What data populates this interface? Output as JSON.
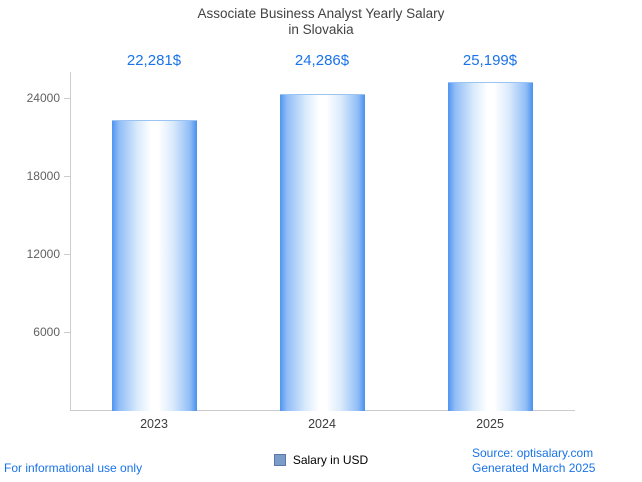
{
  "title": {
    "line1": "Associate Business Analyst Yearly Salary",
    "line2": "in Slovakia"
  },
  "chart_data": {
    "type": "bar",
    "title": "Associate Business Analyst Yearly Salary in Slovakia",
    "categories": [
      "2023",
      "2024",
      "2025"
    ],
    "values": [
      22281,
      24286,
      25199
    ],
    "value_labels": [
      "22,281$",
      "24,286$",
      "25,199$"
    ],
    "series_name": "Salary in USD",
    "xlabel": "",
    "ylabel": "",
    "ylim": [
      0,
      26000
    ],
    "yticks": [
      6000,
      12000,
      18000,
      24000
    ],
    "grid": false,
    "legend_position": "bottom"
  },
  "legend": {
    "label": "Salary in USD"
  },
  "footer": {
    "disclaimer": "For informational use only",
    "source": "Source: optisalary.com",
    "generated": "Generated March 2025"
  },
  "colors": {
    "accent_blue": "#1a73e8",
    "bar_edge_blue": "#4e94f0",
    "bar_center_white": "#ffffff",
    "axis_gray": "#cccccc",
    "title_gray": "#424242",
    "tick_gray": "#616161",
    "legend_swatch": "#7b9cc9"
  }
}
